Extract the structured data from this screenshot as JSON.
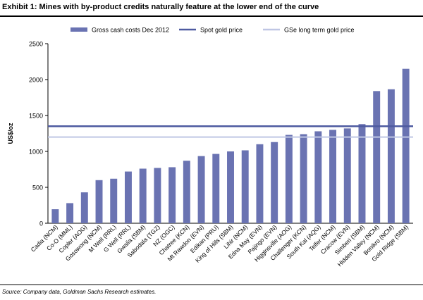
{
  "title": "Exhibit 1: Mines with by-product credits naturally feature at the lower end of the curve",
  "source": "Source: Company data, Goldman Sachs Research estimates.",
  "colors": {
    "bar": "#6A73B2",
    "spot": "#4E5AA0",
    "longterm": "#BFC6E4"
  },
  "chart_data": {
    "type": "bar",
    "ylabel": "US$/oz",
    "ylim": [
      0,
      2500
    ],
    "yticks": [
      "0",
      "500",
      "1000",
      "1500",
      "2000",
      "2500"
    ],
    "categories": [
      "Cadia (NCM)",
      "Co-O (MML)",
      "Copler (AOG)",
      "Gosowong (NCM)",
      "M Well (RRL)",
      "G Well (RRL)",
      "Gwalia (SBM)",
      "Sabodala (TGZ)",
      "NZ (OGC)",
      "Chatree (KCN)",
      "Mt Rawdon (EVN)",
      "Edikan (PRU)",
      "King of Hills (SBM)",
      "Lihir (NCM)",
      "Edna May (EVN)",
      "Pajingo (EVN)",
      "Higginsville (AOG)",
      "Challenger (KCN)",
      "South Kal (AQG)",
      "Telfer (NCM)",
      "Cracow (EVN)",
      "Simberi (SBM)",
      "Hidden Valley (NCM)",
      "Bonikro (NCM)",
      "Gold Ridge (SBM)"
    ],
    "series": [
      {
        "name": "Gross cash costs Dec 2012",
        "values": [
          195,
          280,
          430,
          600,
          620,
          720,
          760,
          770,
          780,
          870,
          935,
          965,
          1000,
          1015,
          1100,
          1130,
          1230,
          1240,
          1280,
          1300,
          1320,
          1380,
          1840,
          1865,
          2150
        ]
      }
    ],
    "reference_lines": [
      {
        "name": "Spot gold price",
        "value": 1350
      },
      {
        "name": "GSe long term  gold price",
        "value": 1200
      }
    ]
  }
}
